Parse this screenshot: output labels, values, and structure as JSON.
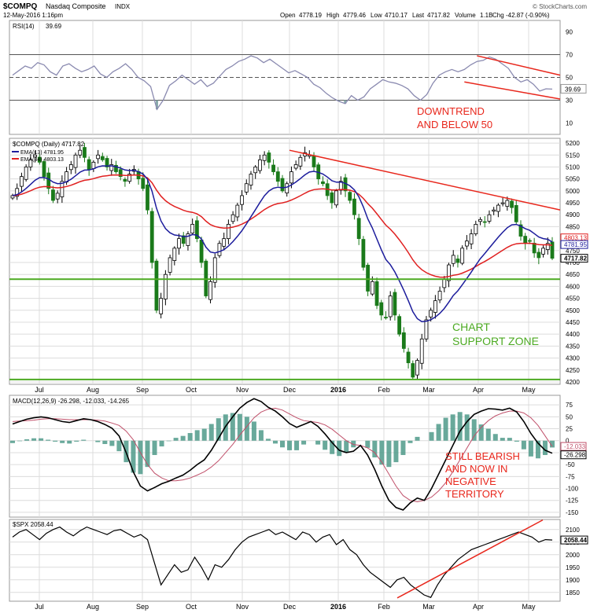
{
  "header": {
    "symbol": "$COMPQ",
    "name": "Nasdaq Composite",
    "exchange": "INDX",
    "date": "12-May-2016 1:16pm",
    "open_label": "Open",
    "open": "4778.19",
    "high_label": "High",
    "high": "4779.46",
    "low_label": "Low",
    "low": "4710.17",
    "last_label": "Last",
    "last": "4717.82",
    "volume_label": "Volume",
    "volume": "1.1B",
    "chg_label": "Chg",
    "chg": "-42.87 (-0.90%)",
    "watermark": "© StockCharts.com"
  },
  "colors": {
    "up": "#000000",
    "down": "#1a7a1a",
    "ema13": "#1c1c9c",
    "ema34": "#e02020",
    "annotation": "#e8271c",
    "support": "#4caa22",
    "macd_hist": "#4f9a8a",
    "rsi_line": "#8a8ab0",
    "grid": "#dcdcdc"
  },
  "month_labels": [
    "Jul",
    "Aug",
    "Sep",
    "Oct",
    "Nov",
    "Dec",
    "2016",
    "Feb",
    "Mar",
    "Apr",
    "May"
  ],
  "chart_data": [
    {
      "id": "rsi",
      "type": "line",
      "legend": "RSI(14)",
      "legend_value": "39.69",
      "ylim": [
        0,
        100
      ],
      "ticks": [
        10,
        30,
        50,
        70,
        90
      ],
      "reference_lines": [
        30,
        50,
        70
      ],
      "last_label": "39.69",
      "values": [
        52,
        56,
        60,
        58,
        63,
        61,
        55,
        52,
        60,
        62,
        58,
        55,
        57,
        60,
        53,
        50,
        55,
        58,
        62,
        57,
        50,
        47,
        42,
        22,
        30,
        43,
        47,
        52,
        48,
        44,
        48,
        42,
        45,
        51,
        57,
        60,
        64,
        66,
        69,
        67,
        63,
        66,
        62,
        58,
        54,
        56,
        53,
        50,
        44,
        41,
        36,
        32,
        29,
        27,
        34,
        30,
        33,
        40,
        44,
        48,
        46,
        45,
        43,
        40,
        34,
        30,
        35,
        45,
        52,
        55,
        57,
        55,
        57,
        61,
        64,
        65,
        68,
        66,
        62,
        58,
        50,
        46,
        48,
        44,
        38,
        40,
        39.69
      ],
      "annotation": [
        "DOWNTREND",
        "AND BELOW 50"
      ]
    },
    {
      "id": "price",
      "type": "candlestick",
      "legend": "$COMPQ (Daily) 4717.82",
      "series": [
        {
          "name": "EMA(13) 4781.95",
          "kind": "ema13"
        },
        {
          "name": "EMA(34) 4803.13",
          "kind": "ema34"
        }
      ],
      "ylim": [
        4190,
        5220
      ],
      "ticks": [
        4200,
        4250,
        4300,
        4350,
        4400,
        4450,
        4500,
        4550,
        4600,
        4650,
        4700,
        4750,
        4800,
        4850,
        4900,
        4950,
        5000,
        5050,
        5100,
        5150,
        5200
      ],
      "tick_labels": [
        "4200",
        "4250",
        "4300",
        "4350",
        "4400",
        "4450",
        "4500",
        "4550",
        "4600",
        "4650",
        "4700",
        "4750",
        "4850",
        "4900",
        "4950",
        "5000",
        "5050",
        "5100",
        "5150",
        "5200"
      ],
      "price_tags": [
        "4803.13",
        "4781.95",
        "4717.82"
      ],
      "closes": [
        4980,
        5010,
        5060,
        5100,
        5130,
        5150,
        5120,
        5060,
        5010,
        4960,
        4990,
        5040,
        5080,
        5110,
        5150,
        5170,
        5140,
        5090,
        5120,
        5150,
        5130,
        5100,
        5110,
        5080,
        5060,
        5040,
        5070,
        5090,
        5050,
        5010,
        4920,
        4700,
        4500,
        4550,
        4650,
        4720,
        4760,
        4800,
        4780,
        4820,
        4860,
        4800,
        4700,
        4560,
        4620,
        4720,
        4780,
        4800,
        4860,
        4900,
        4940,
        4980,
        5030,
        5070,
        5100,
        5130,
        5150,
        5120,
        5080,
        5040,
        5000,
        5030,
        5080,
        5110,
        5140,
        5160,
        5150,
        5100,
        5050,
        5030,
        4980,
        4950,
        5000,
        5040,
        5000,
        4960,
        4900,
        4800,
        4680,
        4580,
        4620,
        4520,
        4480,
        4470,
        4560,
        4480,
        4400,
        4340,
        4280,
        4220,
        4290,
        4380,
        4460,
        4500,
        4540,
        4580,
        4630,
        4690,
        4730,
        4700,
        4760,
        4790,
        4820,
        4860,
        4880,
        4870,
        4900,
        4920,
        4940,
        4950,
        4960,
        4930,
        4870,
        4810,
        4780,
        4790,
        4740,
        4720,
        4760,
        4780,
        4717.82
      ],
      "support_levels": [
        4630,
        4210
      ],
      "resistance_line": {
        "from": {
          "date": "2015-12-01",
          "price": 5170
        },
        "to": {
          "date": "2016-05-31",
          "price": 4920
        }
      },
      "annotation": [
        "CHART",
        "SUPPORT ZONE"
      ]
    },
    {
      "id": "macd",
      "type": "line",
      "legend": "MACD(12,26,9) -26.298, -12.033, -14.265",
      "ylim": [
        -160,
        95
      ],
      "ticks": [
        -150,
        -125,
        -100,
        -75,
        -50,
        -25,
        0,
        25,
        50,
        75
      ],
      "tick_labels": [
        "-150",
        "-125",
        "-100",
        "-75",
        "-50",
        "-25",
        "0",
        "25",
        "50",
        "75"
      ],
      "price_tags": [
        "-12.033",
        "-26.298"
      ],
      "series": [
        {
          "name": "MACD",
          "values": [
            35,
            40,
            45,
            48,
            50,
            48,
            44,
            40,
            38,
            42,
            46,
            44,
            40,
            34,
            26,
            10,
            -25,
            -65,
            -95,
            -105,
            -98,
            -90,
            -85,
            -78,
            -72,
            -62,
            -50,
            -40,
            -20,
            5,
            30,
            50,
            68,
            80,
            88,
            82,
            70,
            62,
            50,
            36,
            28,
            34,
            40,
            30,
            14,
            -4,
            -20,
            -25,
            -22,
            -10,
            -30,
            -60,
            -95,
            -125,
            -140,
            -145,
            -130,
            -120,
            -125,
            -100,
            -70,
            -40,
            -10,
            20,
            40,
            55,
            62,
            67,
            66,
            64,
            68,
            60,
            40,
            15,
            -5,
            -20,
            -26.298
          ]
        },
        {
          "name": "Signal",
          "values": [
            40,
            41,
            42,
            43,
            45,
            46,
            46,
            45,
            44,
            44,
            44,
            44,
            43,
            41,
            37,
            32,
            20,
            2,
            -25,
            -50,
            -68,
            -78,
            -84,
            -84,
            -82,
            -78,
            -72,
            -65,
            -55,
            -42,
            -25,
            -8,
            12,
            30,
            48,
            60,
            66,
            68,
            64,
            56,
            48,
            42,
            40,
            38,
            33,
            24,
            12,
            0,
            -8,
            -10,
            -15,
            -25,
            -45,
            -70,
            -95,
            -115,
            -125,
            -128,
            -125,
            -118,
            -105,
            -88,
            -65,
            -40,
            -15,
            10,
            28,
            42,
            52,
            58,
            62,
            62,
            58,
            48,
            32,
            10,
            -12.033
          ]
        },
        {
          "name": "Histogram",
          "values": [
            -5,
            -1,
            3,
            5,
            5,
            2,
            -2,
            -5,
            -6,
            -2,
            2,
            0,
            -3,
            -7,
            -11,
            -22,
            -45,
            -67,
            -70,
            -55,
            -30,
            -12,
            -1,
            6,
            10,
            16,
            22,
            25,
            35,
            47,
            55,
            58,
            56,
            50,
            40,
            22,
            4,
            -6,
            -14,
            -20,
            -20,
            -8,
            0,
            -8,
            -19,
            -28,
            -32,
            -25,
            -14,
            0,
            -15,
            -35,
            -50,
            -55,
            -45,
            -30,
            -5,
            8,
            0,
            18,
            35,
            48,
            55,
            60,
            55,
            45,
            34,
            25,
            14,
            6,
            6,
            -2,
            -18,
            -33,
            -37,
            -30,
            -14.265
          ]
        }
      ],
      "annotation": [
        "STILL BEARISH",
        "AND NOW IN",
        "NEGATIVE",
        "TERRITORY"
      ]
    },
    {
      "id": "spx",
      "type": "line",
      "legend": "$SPX 2058.44",
      "ylim": [
        1815,
        2140
      ],
      "ticks": [
        1850,
        1900,
        1950,
        2000,
        2050,
        2100
      ],
      "tick_labels": [
        "1850",
        "1900",
        "1950",
        "2000",
        "2050",
        "2100"
      ],
      "price_tag": "2058.44",
      "values": [
        2070,
        2090,
        2100,
        2080,
        2060,
        2085,
        2100,
        2110,
        2090,
        2075,
        2095,
        2110,
        2100,
        2090,
        2080,
        2095,
        2100,
        2085,
        2070,
        2080,
        2060,
        1970,
        1880,
        1920,
        1960,
        1930,
        1940,
        1990,
        1950,
        1900,
        1960,
        1950,
        1980,
        2020,
        2050,
        2070,
        2080,
        2090,
        2100,
        2080,
        2090,
        2075,
        2060,
        2090,
        2080,
        2050,
        2070,
        2080,
        2040,
        2060,
        2020,
        2000,
        1960,
        1930,
        1910,
        1890,
        1870,
        1900,
        1910,
        1880,
        1860,
        1840,
        1830,
        1880,
        1920,
        1950,
        1980,
        2000,
        2020,
        2030,
        2040,
        2050,
        2060,
        2070,
        2080,
        2090,
        2080,
        2070,
        2050,
        2060,
        2058.44
      ]
    }
  ]
}
